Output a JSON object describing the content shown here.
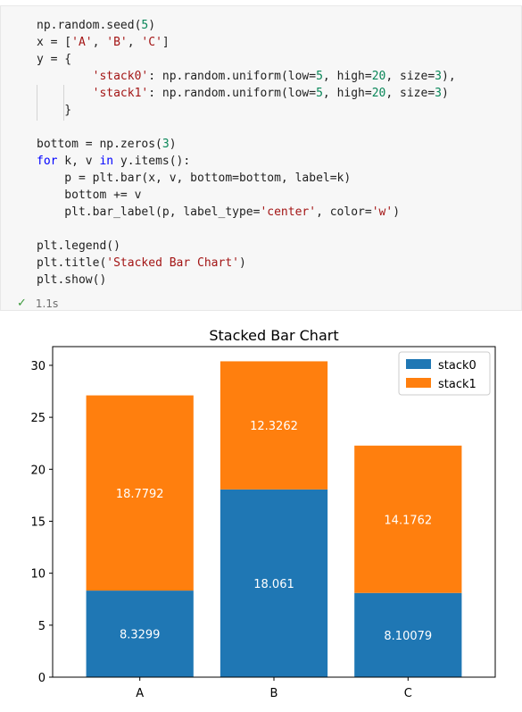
{
  "cell": {
    "code_lines": [
      [
        {
          "t": "np.random.seed(",
          "c": ""
        },
        {
          "t": "5",
          "c": "num"
        },
        {
          "t": ")",
          "c": ""
        }
      ],
      [
        {
          "t": "x = [",
          "c": ""
        },
        {
          "t": "'A'",
          "c": "str"
        },
        {
          "t": ", ",
          "c": ""
        },
        {
          "t": "'B'",
          "c": "str"
        },
        {
          "t": ", ",
          "c": ""
        },
        {
          "t": "'C'",
          "c": "str"
        },
        {
          "t": "]",
          "c": ""
        }
      ],
      [
        {
          "t": "y = {",
          "c": ""
        }
      ],
      [
        {
          "t": "        ",
          "c": ""
        },
        {
          "t": "'stack0'",
          "c": "str"
        },
        {
          "t": ": np.random.uniform(low=",
          "c": ""
        },
        {
          "t": "5",
          "c": "num"
        },
        {
          "t": ", high=",
          "c": ""
        },
        {
          "t": "20",
          "c": "num"
        },
        {
          "t": ", size=",
          "c": ""
        },
        {
          "t": "3",
          "c": "num"
        },
        {
          "t": "),",
          "c": ""
        }
      ],
      [
        {
          "t": "        ",
          "c": ""
        },
        {
          "t": "'stack1'",
          "c": "str"
        },
        {
          "t": ": np.random.uniform(low=",
          "c": ""
        },
        {
          "t": "5",
          "c": "num"
        },
        {
          "t": ", high=",
          "c": ""
        },
        {
          "t": "20",
          "c": "num"
        },
        {
          "t": ", size=",
          "c": ""
        },
        {
          "t": "3",
          "c": "num"
        },
        {
          "t": ")",
          "c": ""
        }
      ],
      [
        {
          "t": "    }",
          "c": ""
        }
      ],
      [
        {
          "t": "",
          "c": ""
        }
      ],
      [
        {
          "t": "bottom = np.zeros(",
          "c": ""
        },
        {
          "t": "3",
          "c": "num"
        },
        {
          "t": ")",
          "c": ""
        }
      ],
      [
        {
          "t": "for",
          "c": "kw"
        },
        {
          "t": " k, v ",
          "c": ""
        },
        {
          "t": "in",
          "c": "kw"
        },
        {
          "t": " y.items():",
          "c": ""
        }
      ],
      [
        {
          "t": "    p = plt.bar(x, v, bottom=bottom, label=k)",
          "c": ""
        }
      ],
      [
        {
          "t": "    bottom += v",
          "c": ""
        }
      ],
      [
        {
          "t": "    plt.bar_label(p, label_type=",
          "c": ""
        },
        {
          "t": "'center'",
          "c": "str"
        },
        {
          "t": ", color=",
          "c": ""
        },
        {
          "t": "'w'",
          "c": "str"
        },
        {
          "t": ")",
          "c": ""
        }
      ],
      [
        {
          "t": "",
          "c": ""
        }
      ],
      [
        {
          "t": "plt.legend()",
          "c": ""
        }
      ],
      [
        {
          "t": "plt.title(",
          "c": ""
        },
        {
          "t": "'Stacked Bar Chart'",
          "c": "str"
        },
        {
          "t": ")",
          "c": ""
        }
      ],
      [
        {
          "t": "plt.show()",
          "c": ""
        }
      ]
    ],
    "status_icon": "check-icon",
    "exec_time": "1.1s"
  },
  "colors": {
    "stack0": "#1f77b4",
    "stack1": "#ff7f0e",
    "success": "#3c9a3c"
  },
  "chart_data": {
    "type": "bar",
    "stacked": true,
    "title": "Stacked Bar Chart",
    "xlabel": "",
    "ylabel": "",
    "categories": [
      "A",
      "B",
      "C"
    ],
    "series": [
      {
        "name": "stack0",
        "values": [
          8.3299,
          18.061,
          8.10079
        ],
        "labels": [
          "8.3299",
          "18.061",
          "8.10079"
        ],
        "color": "#1f77b4"
      },
      {
        "name": "stack1",
        "values": [
          18.7792,
          12.3262,
          14.1762
        ],
        "labels": [
          "18.7792",
          "12.3262",
          "14.1762"
        ],
        "color": "#ff7f0e"
      }
    ],
    "ylim": [
      0,
      31.8
    ],
    "yticks": [
      0,
      5,
      10,
      15,
      20,
      25,
      30
    ],
    "legend": "top-right",
    "grid": false
  }
}
